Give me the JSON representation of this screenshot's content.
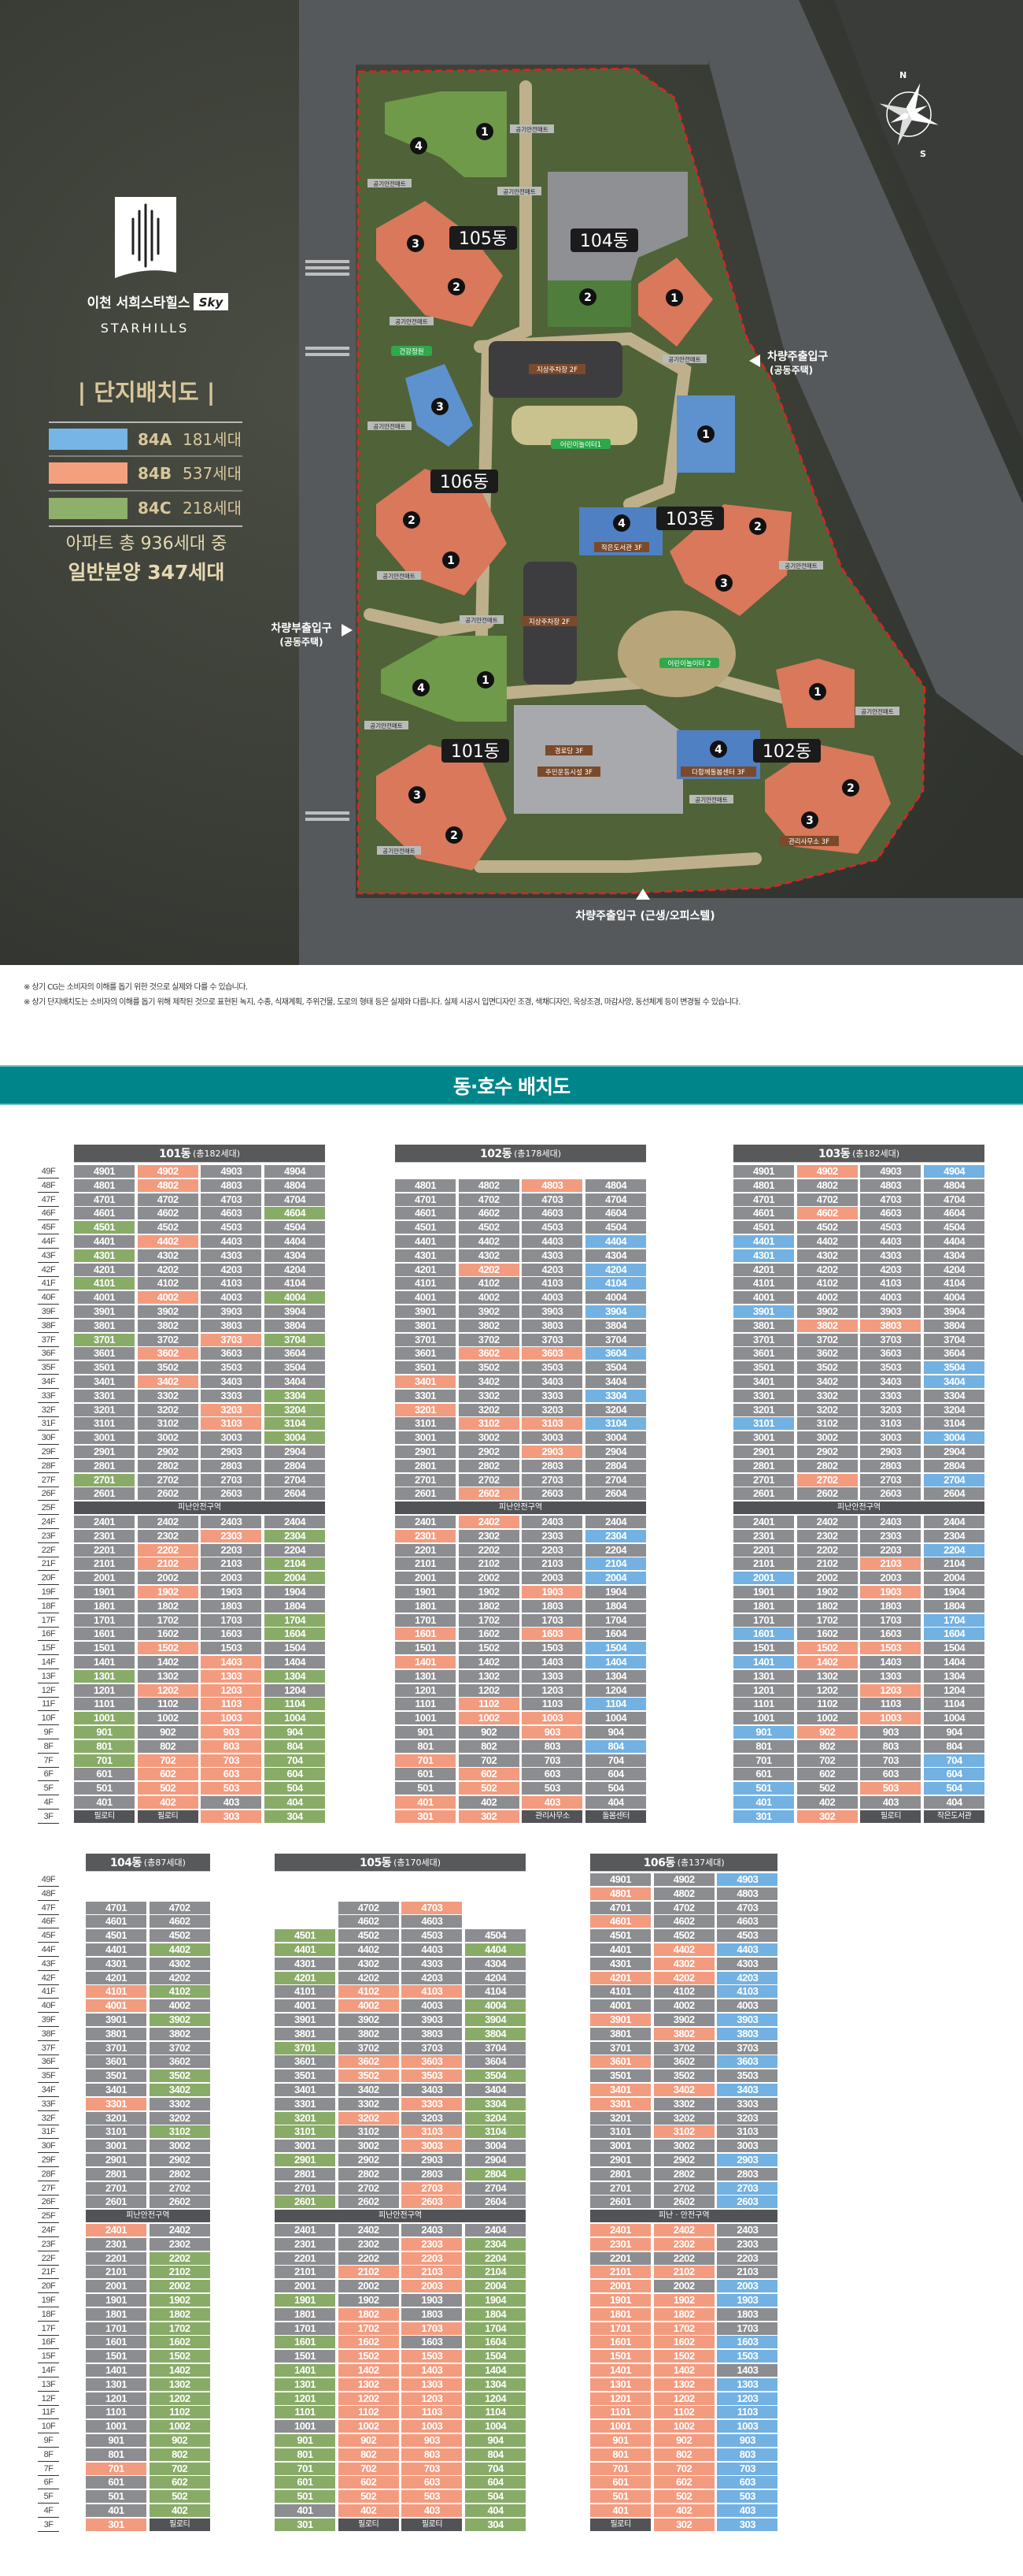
{
  "site_plan": {
    "brand": {
      "name_ko": "이천 서희스타힐스",
      "sky": "Sky",
      "name_en": "STARHILLS"
    },
    "title": "| 단지배치도 |",
    "legend": [
      {
        "type": "84A",
        "count": "181세대",
        "color": "#76b5e6"
      },
      {
        "type": "84B",
        "count": "537세대",
        "color": "#f4a07f"
      },
      {
        "type": "84C",
        "count": "218세대",
        "color": "#8fb06a"
      }
    ],
    "summary": [
      "아파트 총 936세대 중",
      "일반분양 347세대"
    ],
    "buildings": [
      "105동",
      "104동",
      "106동",
      "103동",
      "101동",
      "102동"
    ],
    "unit_numbers": {
      "one": "1",
      "two": "2",
      "three": "3",
      "four": "4"
    },
    "facilities": {
      "parking_1": "지상주차장 2F",
      "parking_2": "지상주차장 2F",
      "playground_1": "어린이놀이터1",
      "playground_2": "어린이놀이터 2",
      "health_garden": "건강정원",
      "library": "작은도서관 3F",
      "senior_center": "경로당 3F",
      "fitness": "주민운동시설 3F",
      "care_center": "다함께돌봄센터 3F",
      "management": "관리사무소 3F"
    },
    "mat_label": "공기안전매트",
    "entrances": {
      "right": [
        "차량주출입구",
        "(공동주택)"
      ],
      "left": [
        "차량부출입구",
        "(공동주택)"
      ],
      "bottom": "차량주출입구 (근생/오피스텔)"
    },
    "compass": {
      "n": "N",
      "s": "S"
    },
    "colors": {
      "boundary": "#e02222",
      "green": "#6f9a4a",
      "orange": "#d9785a",
      "blue": "#5d92cf",
      "title_gold": "#d8c79c"
    }
  },
  "notes": [
    "※ 상기 CG는 소비자의 이해를 돕기 위한 것으로 실제와 다를 수 있습니다.",
    "※ 상기 단지배치도는 소비자의 이해를 돕기 위해 제작된 것으로 표현된 녹지, 수종, 식재계획, 주위건물, 도로의 형태 등은 실제와 다릅니다. 실제 시공시 입면디자인 조경, 색채디자인, 옥상조경, 마감사양, 동선체계 등이 변경될 수 있습니다."
  ],
  "section_title": "동·호수 배치도",
  "cell_colors": {
    "n": "#8c8d90",
    "o": "#f39b7f",
    "g": "#89ab68",
    "b": "#72b1e2",
    "d": "#525357"
  },
  "floor_labels": [
    "49F",
    "48F",
    "47F",
    "46F",
    "45F",
    "44F",
    "43F",
    "42F",
    "41F",
    "40F",
    "39F",
    "38F",
    "37F",
    "36F",
    "35F",
    "34F",
    "33F",
    "32F",
    "31F",
    "30F",
    "29F",
    "28F",
    "27F",
    "26F",
    "25F",
    "24F",
    "23F",
    "22F",
    "21F",
    "20F",
    "19F",
    "18F",
    "17F",
    "16F",
    "15F",
    "14F",
    "13F",
    "12F",
    "11F",
    "10F",
    "9F",
    "8F",
    "7F",
    "6F",
    "5F",
    "4F",
    "3F"
  ],
  "tables": [
    {
      "title": "101동",
      "subtitle": "(총182세대)",
      "rows": [
        "4901|4902:o|4903|4904",
        "4801|4802:o|4803|4804",
        "4701|4702|4703|4704",
        "4601|4602|4603|4604:g",
        "4501:g|4502|4503|4504",
        "4401|4402:o|4403|4404",
        "4301:g|4302|4303|4304",
        "4201|4202|4203|4204",
        "4101:g|4102|4103|4104",
        "4001|4002:o|4003|4004:g",
        "3901|3902|3903|3904",
        "3801|3802|3803|3804",
        "3701:g|3702|3703:o|3704:g",
        "3601|3602:o|3603|3604",
        "3501|3502|3503|3504",
        "3401|3402:o|3403|3404",
        "3301|3302|3303|3304:g",
        "3201|3202|3203:o|3204:g",
        "3101|3102|3103:o|3104:g",
        "3001|3002|3003|3004:g",
        "2901|2902|2903|2904",
        "2801|2802|2803|2804",
        "2701:g|2702|2703|2704",
        "2601|2602|2603|2604",
        "=피난안전구역",
        "2401|2402|2403|2404",
        "2301|2302|2303:o|2304:g",
        "2201|2202:o|2203|2204",
        "2101|2102:o|2103|2104:g",
        "2001|2002|2003|2004:g",
        "1901|1902:o|1903|1904",
        "1801|1802|1803|1804",
        "1701|1702|1703|1704:g",
        "1601|1602|1603|1604:g",
        "1501|1502:o|1503|1504",
        "1401|1402|1403:o|1404",
        "1301:g|1302|1303:o|1304:g",
        "1201|1202:o|1203:o|1204",
        "1101|1102|1103:o|1104:g",
        "1001:g|1002|1003:o|1004:g",
        "901:g|902|903:o|904:g",
        "801:g|802|803:o|804:g",
        "701:g|702:o|703:o|704:g",
        "601|602:o|603:o|604:g",
        "501|502:o|503:o|504:g",
        "401|402:o|403|404:g",
        "필로티:d|필로티:d|303:o|304:g"
      ]
    },
    {
      "title": "102동",
      "subtitle": "(총178세대)",
      "rows": [
        "-|-|-|-",
        "4801|4802|4803:o|4804",
        "4701|4702|4703|4704",
        "4601|4602|4603|4604",
        "4501|4502|4503|4504",
        "4401|4402|4403|4404:b",
        "4301|4302|4303|4304",
        "4201|4202:o|4203|4204:b",
        "4101|4102|4103|4104:b",
        "4001|4002|4003|4004",
        "3901|3902|3903|3904:b",
        "3801|3802|3803|3804",
        "3701|3702|3703|3704",
        "3601|3602:o|3603:o|3604:b",
        "3501|3502|3503|3504",
        "3401:o|3402|3403|3404",
        "3301|3302|3303|3304:b",
        "3201:o|3202|3203|3204",
        "3101|3102:o|3103:o|3104:b",
        "3001|3002|3003|3004",
        "2901|2902|2903:o|2904",
        "2801|2802|2803|2804",
        "2701|2702|2703|2704",
        "2601|2602:o|2603|2604",
        "=피난안전구역",
        "2401|2402:o|2403|2404",
        "2301:o|2302|2303|2304:b",
        "2201|2202|2203|2204",
        "2101|2102|2103|2104:b",
        "2001|2002|2003|2004:b",
        "1901|1902|1903:o|1904",
        "1801|1802|1803|1804",
        "1701|1702|1703|1704",
        "1601:o|1602|1603:o|1604",
        "1501|1502|1503|1504:b",
        "1401:o|1402|1403|1404:b",
        "1301|1302|1303|1304",
        "1201|1202|1203|1204",
        "1101|1102:o|1103|1104:b",
        "1001|1002:o|1003:o|1004",
        "901|902|903:o|904",
        "801|802|803|804:b",
        "701:o|702|703|704",
        "601|602:o|603|604",
        "501|502:o|503|504",
        "401:o|402|403:o|404",
        "301:o|302:o|관리사무소:d|돌봄센터:d"
      ]
    },
    {
      "title": "103동",
      "subtitle": "(총182세대)",
      "rows": [
        "4901|4902:o|4903|4904:b",
        "4801|4802|4803|4804",
        "4701|4702|4703|4704",
        "4601|4602:o|4603|4604",
        "4501|4502|4503|4504",
        "4401:b|4402|4403|4404",
        "4301:b|4302|4303|4304",
        "4201|4202|4203|4204",
        "4101|4102|4103|4104",
        "4001|4002|4003|4004",
        "3901:b|3902|3903|3904",
        "3801|3802:o|3803:o|3804",
        "3701|3702|3703|3704",
        "3601|3602|3603|3604",
        "3501|3502|3503|3504:b",
        "3401|3402|3403|3404:b",
        "3301|3302|3303|3304",
        "3201|3202|3203|3204",
        "3101:b|3102|3103|3104",
        "3001|3002|3003|3004:b",
        "2901|2902|2903|2904",
        "2801|2802|2803|2804",
        "2701|2702:o|2703|2704:b",
        "2601|2602|2603|2604",
        "=피난안전구역",
        "2401|2402|2403|2404",
        "2301|2302|2303|2304",
        "2201|2202|2203|2204:b",
        "2101|2102|2103:o|2104",
        "2001:b|2002|2003|2004",
        "1901|1902|1903:o|1904",
        "1801|1802|1803|1804",
        "1701|1702|1703|1704:b",
        "1601:b|1602|1603|1604:b",
        "1501|1502:o|1503:o|1504",
        "1401:b|1402:o|1403|1404",
        "1301|1302|1303|1304",
        "1201|1202|1203:o|1204",
        "1101|1102|1103|1104",
        "1001|1002|1003:o|1004",
        "901:b|902:o|903|904",
        "801|802|803|804",
        "701|702|703|704:b",
        "601|602|603|604:b",
        "501:b|502|503:o|504:b",
        "401:b|402|403|404",
        "301:b|302:o|필로티:d|작은도서관:d"
      ]
    },
    {
      "title": "104동",
      "subtitle": "(총87세대)",
      "rows": [
        "-|-",
        "-|-",
        "4701|4702",
        "4601|4602",
        "4501|4502",
        "4401|4402:g",
        "4301|4302",
        "4201|4202",
        "4101:o|4102:g",
        "4001:o|4002",
        "3901|3902:g",
        "3801|3802",
        "3701|3702",
        "3601|3602",
        "3501|3502:g",
        "3401|3402:g",
        "3301:o|3302",
        "3201|3202",
        "3101|3102:g",
        "3001|3002",
        "2901|2902",
        "2801|2802",
        "2701|2702",
        "2601|2602",
        "=피난안전구역",
        "2401:o|2402",
        "2301|2302",
        "2201|2202:g",
        "2101|2102:g",
        "2001|2002:g",
        "1901|1902:g",
        "1801|1802:g",
        "1701|1702:g",
        "1601|1602:g",
        "1501|1502:g",
        "1401|1402:g",
        "1301|1302:g",
        "1201|1202:g",
        "1101|1102:g",
        "1001|1002:g",
        "901|902:g",
        "801|802:g",
        "701:o|702:g",
        "601|602:g",
        "501|502:g",
        "401|402:g",
        "301:o|필로티:d"
      ]
    },
    {
      "title": "105동",
      "subtitle": "(총170세대)",
      "rows": [
        "-|-|-|-",
        "-|-|-|-",
        "-|4702|4703:o|-",
        "-|4602|4603|-",
        "4501:g|4502|4503|4504",
        "4401:g|4402|4403|4404:g",
        "4301|4302|4303|4304",
        "4201:g|4202|4203|4204",
        "4101|4102:o|4103:o|4104",
        "4001|4002:o|4003|4004:g",
        "3901|3902|3903|3904:g",
        "3801|3802|3803|3804:g",
        "3701:g|3702|3703|3704",
        "3601|3602:o|3603:o|3604",
        "3501|3502:o|3503:o|3504:g",
        "3401|3402|3403|3404",
        "3301|3302|3303:o|3304:g",
        "3201:g|3202:o|3203|3204:g",
        "3101:g|3102|3103:o|3104:g",
        "3001|3002|3003:o|3004",
        "2901:g|2902|2903|2904",
        "2801|2802|2803|2804:g",
        "2701|2702|2703:o|2704",
        "2601:g|2602|2603:o|2604",
        "=피난안전구역",
        "2401|2402|2403|2404",
        "2301|2302|2303:o|2304:g",
        "2201|2202|2203:o|2204:g",
        "2101|2102:o|2103:o|2104:g",
        "2001|2002|2003:o|2004:g",
        "1901:g|1902|1903|1904:g",
        "1801|1802:o|1803|1804:g",
        "1701|1702:o|1703:o|1704:g",
        "1601:g|1602:o|1603|1604:g",
        "1501|1502:o|1503:o|1504:g",
        "1401:g|1402:o|1403:o|1404:g",
        "1301:g|1302:o|1303:o|1304:g",
        "1201:g|1202:o|1203:o|1204:g",
        "1101:g|1102:o|1103:o|1104:g",
        "1001|1002:o|1003:o|1004:g",
        "901:g|902:o|903:o|904:g",
        "801:g|802:o|803:o|804:g",
        "701:g|702:o|703:o|704:g",
        "601:g|602:o|603:o|604:g",
        "501:g|502:o|503:o|504:g",
        "401|402:o|403:o|404:g",
        "301:g|필로티:d|필로티:d|304:g"
      ]
    },
    {
      "title": "106동",
      "subtitle": "(총137세대)",
      "rows": [
        "4901|4902|4903:b",
        "4801:o|4802|4803",
        "4701|4702|4703",
        "4601:o|4602|4603",
        "4501|4502|4503",
        "4401|4402:o|4403:b",
        "4301|4302:o|4303",
        "4201:o|4202:o|4203:b",
        "4101|4102|4103:b",
        "4001|4002|4003",
        "3901:o|3902|3903:b",
        "3801|3802:o|3803:b",
        "3701|3702|3703",
        "3601:o|3602|3603:b",
        "3501|3502|3503",
        "3401:o|3402:o|3403:b",
        "3301:o|3302|3303",
        "3201|3202|3203",
        "3101|3102:o|3103",
        "3001|3002|3003",
        "2901|2902|2903:b",
        "2801|2802|2803",
        "2701|2702|2703:b",
        "2601|2602|2603:b",
        "=피난 · 안전구역",
        "2401:o|2402:o|2403",
        "2301:o|2302:o|2303",
        "2201|2202|2203",
        "2101:o|2102:o|2103",
        "2001:o|2002|2003:b",
        "1901:o|1902:o|1903:b",
        "1801:o|1802:o|1803",
        "1701:o|1702:o|1703",
        "1601:o|1602:o|1603:b",
        "1501:o|1502:o|1503:b",
        "1401:o|1402:o|1403",
        "1301:o|1302:o|1303:b",
        "1201:o|1202:o|1203:b",
        "1101:o|1102:o|1103:b",
        "1001:o|1002:o|1003:b",
        "901:o|902:o|903:b",
        "801:o|802:o|803:b",
        "701:o|702:o|703:b",
        "601:o|602:o|603:b",
        "501:o|502:o|503:b",
        "401:o|402:o|403:b",
        "필로티:d|302:o|303:b"
      ]
    }
  ]
}
